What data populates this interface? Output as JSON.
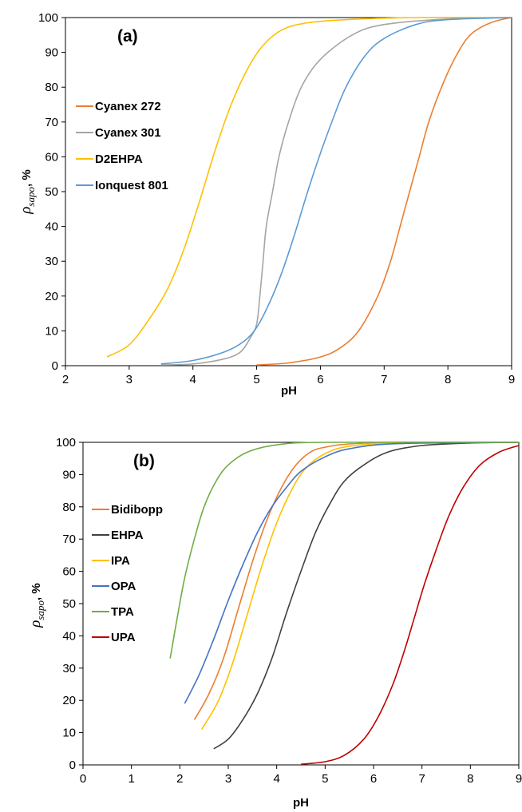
{
  "chart_data": [
    {
      "type": "line",
      "panel_label": "(a)",
      "xlabel": "pH",
      "ylabel": {
        "symbol": "ρ",
        "subscript": "sapo",
        "suffix": ", %"
      },
      "xlim": [
        2,
        9
      ],
      "ylim": [
        0,
        100
      ],
      "xticks": [
        "2",
        "3",
        "4",
        "5",
        "6",
        "7",
        "8",
        "9"
      ],
      "yticks": [
        "0",
        "10",
        "20",
        "30",
        "40",
        "50",
        "60",
        "70",
        "80",
        "90",
        "100"
      ],
      "grid": false,
      "legend_position": "left",
      "series": [
        {
          "name": "Cyanex 272",
          "color": "#ED7D31",
          "points": [
            [
              5.0,
              0.2
            ],
            [
              5.5,
              0.8
            ],
            [
              6.0,
              2.5
            ],
            [
              6.3,
              5
            ],
            [
              6.6,
              10
            ],
            [
              6.9,
              20
            ],
            [
              7.1,
              30
            ],
            [
              7.25,
              40
            ],
            [
              7.4,
              50
            ],
            [
              7.55,
              60
            ],
            [
              7.7,
              70
            ],
            [
              7.9,
              80
            ],
            [
              8.1,
              88
            ],
            [
              8.3,
              94
            ],
            [
              8.5,
              97
            ],
            [
              8.75,
              99
            ],
            [
              9.0,
              100
            ]
          ]
        },
        {
          "name": "Cyanex 301",
          "color": "#A5A5A5",
          "points": [
            [
              3.5,
              0.2
            ],
            [
              4.0,
              0.5
            ],
            [
              4.5,
              2
            ],
            [
              4.75,
              4
            ],
            [
              4.9,
              8
            ],
            [
              5.0,
              12
            ],
            [
              5.05,
              20
            ],
            [
              5.1,
              30
            ],
            [
              5.15,
              40
            ],
            [
              5.25,
              50
            ],
            [
              5.35,
              60
            ],
            [
              5.5,
              70
            ],
            [
              5.7,
              80
            ],
            [
              6.0,
              88
            ],
            [
              6.5,
              95
            ],
            [
              7.0,
              98
            ],
            [
              8.0,
              99.6
            ],
            [
              9.0,
              100
            ]
          ]
        },
        {
          "name": "D2EHPA",
          "color": "#FFC000",
          "points": [
            [
              2.65,
              2.5
            ],
            [
              3.0,
              6
            ],
            [
              3.3,
              13
            ],
            [
              3.6,
              22
            ],
            [
              3.85,
              33
            ],
            [
              4.1,
              47
            ],
            [
              4.35,
              62
            ],
            [
              4.6,
              75
            ],
            [
              4.85,
              85
            ],
            [
              5.1,
              92
            ],
            [
              5.4,
              96.5
            ],
            [
              5.8,
              98.5
            ],
            [
              6.5,
              99.5
            ],
            [
              7.5,
              100
            ],
            [
              9.0,
              100
            ]
          ]
        },
        {
          "name": "Ionquest 801",
          "color": "#5B9BD5",
          "points": [
            [
              3.5,
              0.5
            ],
            [
              4.0,
              1.5
            ],
            [
              4.5,
              4
            ],
            [
              4.8,
              7
            ],
            [
              5.0,
              11
            ],
            [
              5.2,
              18
            ],
            [
              5.4,
              27
            ],
            [
              5.6,
              38
            ],
            [
              5.8,
              50
            ],
            [
              6.0,
              61
            ],
            [
              6.2,
              71
            ],
            [
              6.4,
              80
            ],
            [
              6.7,
              89
            ],
            [
              7.0,
              94
            ],
            [
              7.5,
              98
            ],
            [
              8.0,
              99.4
            ],
            [
              9.0,
              100
            ]
          ]
        }
      ]
    },
    {
      "type": "line",
      "panel_label": "(b)",
      "xlabel": "pH",
      "ylabel": {
        "symbol": "ρ",
        "subscript": "sapo",
        "suffix": ", %"
      },
      "xlim": [
        0,
        9
      ],
      "ylim": [
        0,
        100
      ],
      "xticks": [
        "0",
        "1",
        "2",
        "3",
        "4",
        "5",
        "6",
        "7",
        "8",
        "9"
      ],
      "yticks": [
        "0",
        "10",
        "20",
        "30",
        "40",
        "50",
        "60",
        "70",
        "80",
        "90",
        "100"
      ],
      "grid": false,
      "legend_position": "left",
      "series": [
        {
          "name": "Bidibopp",
          "color": "#ED7D31",
          "points": [
            [
              2.3,
              14
            ],
            [
              2.6,
              22
            ],
            [
              2.9,
              33
            ],
            [
              3.2,
              48
            ],
            [
              3.5,
              63
            ],
            [
              3.8,
              76
            ],
            [
              4.1,
              86
            ],
            [
              4.4,
              93
            ],
            [
              4.7,
              97
            ],
            [
              5.0,
              98.5
            ],
            [
              5.5,
              99.5
            ],
            [
              6.5,
              100
            ],
            [
              9.0,
              100
            ]
          ]
        },
        {
          "name": "EHPA",
          "color": "#404040",
          "points": [
            [
              2.7,
              5
            ],
            [
              3.0,
              8
            ],
            [
              3.3,
              14
            ],
            [
              3.6,
              22
            ],
            [
              3.9,
              33
            ],
            [
              4.2,
              47
            ],
            [
              4.5,
              60
            ],
            [
              4.8,
              72
            ],
            [
              5.1,
              81
            ],
            [
              5.4,
              88
            ],
            [
              5.8,
              93
            ],
            [
              6.3,
              97
            ],
            [
              7.0,
              99
            ],
            [
              8.0,
              99.8
            ],
            [
              9.0,
              100
            ]
          ]
        },
        {
          "name": "IPA",
          "color": "#FFC000",
          "points": [
            [
              2.45,
              11
            ],
            [
              2.8,
              20
            ],
            [
              3.1,
              32
            ],
            [
              3.4,
              47
            ],
            [
              3.7,
              62
            ],
            [
              4.0,
              75
            ],
            [
              4.3,
              85
            ],
            [
              4.6,
              92
            ],
            [
              5.0,
              96.5
            ],
            [
              5.5,
              98.8
            ],
            [
              6.5,
              99.8
            ],
            [
              9.0,
              100
            ]
          ]
        },
        {
          "name": "OPA",
          "color": "#4472C4",
          "points": [
            [
              2.1,
              19
            ],
            [
              2.4,
              28
            ],
            [
              2.7,
              39
            ],
            [
              3.0,
              51
            ],
            [
              3.3,
              62
            ],
            [
              3.6,
              72
            ],
            [
              3.9,
              80
            ],
            [
              4.2,
              86
            ],
            [
              4.5,
              91
            ],
            [
              5.0,
              95.5
            ],
            [
              5.5,
              98
            ],
            [
              6.5,
              99.6
            ],
            [
              9.0,
              100
            ]
          ]
        },
        {
          "name": "TPA",
          "color": "#70AD47",
          "points": [
            [
              1.8,
              33
            ],
            [
              1.95,
              46
            ],
            [
              2.1,
              58
            ],
            [
              2.3,
              70
            ],
            [
              2.5,
              80
            ],
            [
              2.75,
              88
            ],
            [
              3.0,
              93
            ],
            [
              3.4,
              97
            ],
            [
              4.0,
              99.2
            ],
            [
              5.0,
              100
            ],
            [
              9.0,
              100
            ]
          ]
        },
        {
          "name": "UPA",
          "color": "#C00000",
          "points": [
            [
              4.5,
              0.2
            ],
            [
              5.0,
              1
            ],
            [
              5.4,
              3
            ],
            [
              5.8,
              8
            ],
            [
              6.1,
              15
            ],
            [
              6.4,
              25
            ],
            [
              6.65,
              36
            ],
            [
              6.85,
              46
            ],
            [
              7.05,
              56
            ],
            [
              7.3,
              67
            ],
            [
              7.55,
              77
            ],
            [
              7.85,
              86
            ],
            [
              8.2,
              93
            ],
            [
              8.6,
              97
            ],
            [
              9.0,
              99
            ]
          ]
        }
      ]
    }
  ]
}
